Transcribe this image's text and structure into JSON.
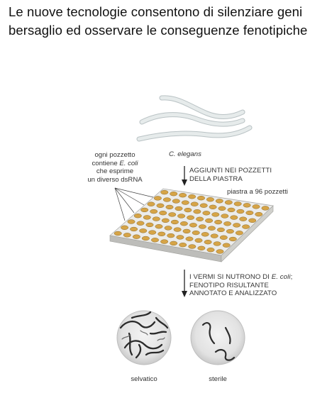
{
  "slide": {
    "title_line1": "Le nuove tecnologie consentono di silenziare geni",
    "title_line2": "bersaglio ed osservare le conseguenze fenotipiche"
  },
  "diagram": {
    "worm_label": "C. elegans",
    "well_note": {
      "line1": "ogni pozzetto",
      "line2_prefix": "contiene ",
      "line2_italic": "E. coli",
      "line3": "che esprime",
      "line4": "un diverso dsRNA"
    },
    "step1": {
      "line1": "AGGIUNTI NEI POZZETTI",
      "line2": "DELLA PIASTRA"
    },
    "plate_label": "piastra a 96 pozzetti",
    "step2": {
      "line1_prefix": "I VERMI SI NUTRONO DI ",
      "line1_italic": "E. coli",
      "line1_suffix": ";",
      "line2": "FENOTIPO RISULTANTE",
      "line3": "ANNOTATO E ANALIZZATO"
    },
    "result_left_label": "selvatico",
    "result_right_label": "sterile",
    "colors": {
      "well": "#d6a447",
      "plate_top": "#e4e4e1",
      "worm": "#e3e8e8"
    }
  }
}
